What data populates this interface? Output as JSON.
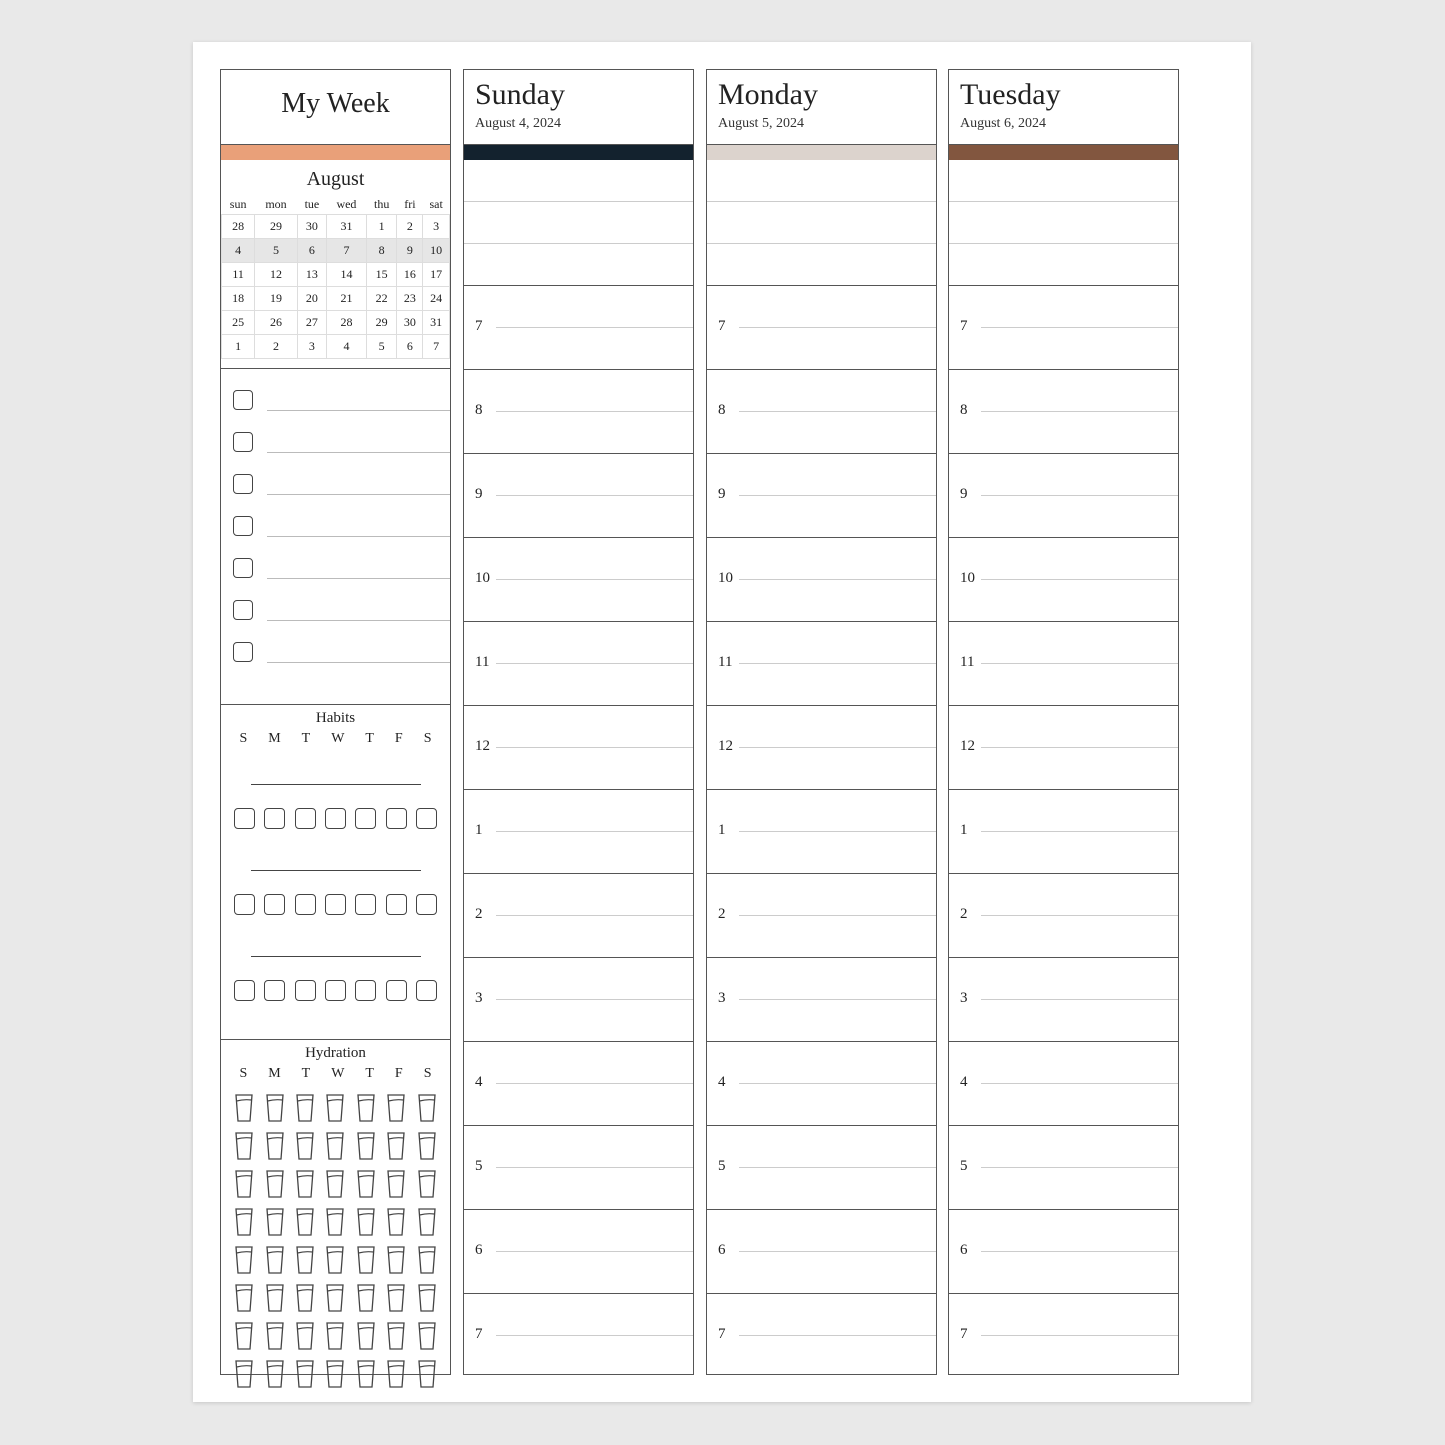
{
  "week": {
    "title": "My Week",
    "accent": "#E9A079"
  },
  "calendar": {
    "month": "August",
    "weekdays": [
      "sun",
      "mon",
      "tue",
      "wed",
      "thu",
      "fri",
      "sat"
    ],
    "weeks": [
      [
        "28",
        "29",
        "30",
        "31",
        "1",
        "2",
        "3"
      ],
      [
        "4",
        "5",
        "6",
        "7",
        "8",
        "9",
        "10"
      ],
      [
        "11",
        "12",
        "13",
        "14",
        "15",
        "16",
        "17"
      ],
      [
        "18",
        "19",
        "20",
        "21",
        "22",
        "23",
        "24"
      ],
      [
        "25",
        "26",
        "27",
        "28",
        "29",
        "30",
        "31"
      ],
      [
        "1",
        "2",
        "3",
        "4",
        "5",
        "6",
        "7"
      ]
    ],
    "current_week_index": 1
  },
  "todo_count": 7,
  "habits": {
    "title": "Habits",
    "days": [
      "S",
      "M",
      "T",
      "W",
      "T",
      "F",
      "S"
    ],
    "rows": 3
  },
  "hydration": {
    "title": "Hydration",
    "days": [
      "S",
      "M",
      "T",
      "W",
      "T",
      "F",
      "S"
    ],
    "glasses_per_day": 8
  },
  "days": [
    {
      "name": "Sunday",
      "date": "August 4, 2024",
      "color": "#13222E"
    },
    {
      "name": "Monday",
      "date": "August 5, 2024",
      "color": "#DCD3CD"
    },
    {
      "name": "Tuesday",
      "date": "August 6, 2024",
      "color": "#82563F"
    }
  ],
  "hours": [
    "7",
    "8",
    "9",
    "10",
    "11",
    "12",
    "1",
    "2",
    "3",
    "4",
    "5",
    "6",
    "7"
  ]
}
